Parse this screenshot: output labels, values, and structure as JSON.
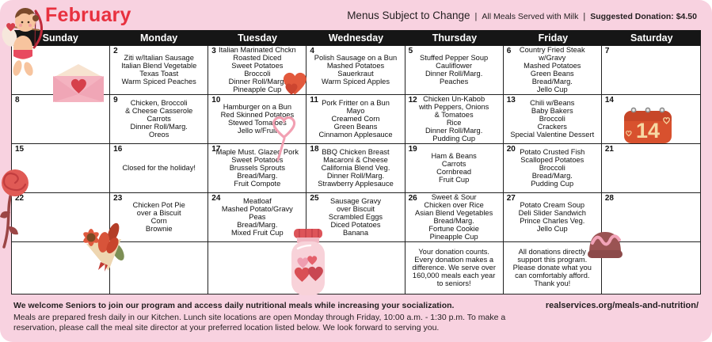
{
  "header": {
    "month": "February",
    "subtitle_main": "Menus Subject to Change",
    "divider": "|",
    "milk_note": "All Meals Served with Milk",
    "donation": "Suggested Donation: $4.50"
  },
  "weekdays": [
    "Sunday",
    "Monday",
    "Tuesday",
    "Wednesday",
    "Thursday",
    "Friday",
    "Saturday"
  ],
  "calendar": {
    "cells": [
      {
        "day": 1,
        "lines": []
      },
      {
        "day": 2,
        "lines": [
          "Ziti w/Italian Sausage",
          "Italian Blend Vegetable",
          "Texas Toast",
          "Warm Spiced Peaches"
        ]
      },
      {
        "day": 3,
        "lines": [
          "Italian Marinated Chckn",
          "Roasted Diced",
          "Sweet Potatoes",
          "Broccoli",
          "Dinner Roll/Marg.",
          "Pineapple Cup"
        ]
      },
      {
        "day": 4,
        "lines": [
          "Polish Sausage on a Bun",
          "Mashed Potatoes",
          "Sauerkraut",
          "Warm Spiced Apples"
        ]
      },
      {
        "day": 5,
        "lines": [
          "Stuffed Pepper Soup",
          "Cauliflower",
          "Dinner Roll/Marg.",
          "Peaches"
        ]
      },
      {
        "day": 6,
        "lines": [
          "Country Fried Steak",
          "w/Gravy",
          "Mashed Potatoes",
          "Green Beans",
          "Bread/Marg.",
          "Jello Cup"
        ]
      },
      {
        "day": 7,
        "lines": []
      },
      {
        "day": 8,
        "lines": []
      },
      {
        "day": 9,
        "lines": [
          "Chicken, Broccoli",
          "& Cheese Casserole",
          "Carrots",
          "Dinner Roll/Marg.",
          "Oreos"
        ]
      },
      {
        "day": 10,
        "lines": [
          "Hamburger on a Bun",
          "Red Skinned Potatoes",
          "Stewed Tomatoes",
          "Jello w/Fruit"
        ]
      },
      {
        "day": 11,
        "lines": [
          "Pork Fritter on a Bun",
          "Mayo",
          "Creamed Corn",
          "Green Beans",
          "Cinnamon Applesauce"
        ]
      },
      {
        "day": 12,
        "lines": [
          "Chicken Un-Kabob",
          "with Peppers, Onions",
          "& Tomatoes",
          "Rice",
          "Dinner Roll/Marg.",
          "Pudding Cup"
        ]
      },
      {
        "day": 13,
        "lines": [
          "Chili w/Beans",
          "Baby Bakers",
          "Broccoli",
          "Crackers",
          "Special Valentine Dessert"
        ]
      },
      {
        "day": 14,
        "lines": []
      },
      {
        "day": 15,
        "lines": []
      },
      {
        "day": 16,
        "lines": [
          "Closed for the holiday!"
        ]
      },
      {
        "day": 17,
        "lines": [
          "Maple Must. Glazed Pork",
          "Sweet Potatoes",
          "Brussels Sprouts",
          "Bread/Marg.",
          "Fruit Compote"
        ]
      },
      {
        "day": 18,
        "lines": [
          "BBQ Chicken Breast",
          "Macaroni & Cheese",
          "California Blend Veg.",
          "Dinner Roll/Marg.",
          "Strawberry Applesauce"
        ]
      },
      {
        "day": 19,
        "lines": [
          "Ham & Beans",
          "Carrots",
          "Cornbread",
          "Fruit Cup"
        ]
      },
      {
        "day": 20,
        "lines": [
          "Potato Crusted Fish",
          "Scalloped Potatoes",
          "Broccoli",
          "Bread/Marg.",
          "Pudding Cup"
        ]
      },
      {
        "day": 21,
        "lines": []
      },
      {
        "day": 22,
        "lines": []
      },
      {
        "day": 23,
        "lines": [
          "Chicken Pot Pie",
          "over a Biscuit",
          "Corn",
          "Brownie"
        ]
      },
      {
        "day": 24,
        "lines": [
          "Meatloaf",
          "Mashed Potato/Gravy",
          "Peas",
          "Bread/Marg.",
          "Mixed Fruit Cup"
        ]
      },
      {
        "day": 25,
        "lines": [
          "Sausage Gravy",
          "over Biscuit",
          "Scrambled Eggs",
          "Diced Potatoes",
          "Banana"
        ]
      },
      {
        "day": 26,
        "lines": [
          "Sweet & Sour",
          "Chicken over Rice",
          "Asian Blend Vegetables",
          "Bread/Marg.",
          "Fortune Cookie",
          "Pineapple Cup"
        ]
      },
      {
        "day": 27,
        "lines": [
          "Potato Cream Soup",
          "Deli Slider Sandwich",
          "Prince Charles Veg.",
          "Jello Cup"
        ]
      },
      {
        "day": 28,
        "lines": []
      }
    ],
    "bottom_row": [
      {
        "lines": []
      },
      {
        "lines": []
      },
      {
        "lines": []
      },
      {
        "lines": []
      },
      {
        "lines": [
          "Your donation counts.",
          "Every donation makes a",
          "difference. We serve over",
          "160,000 meals each year",
          "to seniors!"
        ]
      },
      {
        "lines": [
          "All donations directly",
          "support this program.",
          "Please donate what you",
          "can comfortably afford.",
          "Thank you!"
        ]
      },
      {
        "lines": []
      }
    ]
  },
  "footer": {
    "welcome": "We welcome Seniors to join our program and access daily nutritional meals while increasing your socialization.",
    "details_line1": "Meals are prepared fresh daily in our Kitchen. Lunch site locations are open Monday through Friday, 10:00 a.m. - 1:30 p.m. To make a",
    "details_line2": "reservation, please call the meal site director at your preferred location listed below. We look forward to serving you.",
    "url": "realservices.org/meals-and-nutrition/"
  },
  "decorations": {
    "calendar_day": "14",
    "icons": [
      "cupid-icon",
      "envelope-heart-icon",
      "double-heart-icon",
      "heart-lollipop-icon",
      "calendar-14-icon",
      "rose-icon",
      "flower-bouquet-icon",
      "jar-of-hearts-icon",
      "chocolate-icon"
    ]
  },
  "colors": {
    "card_pink": "#f8d2e0",
    "accent_red": "#e8313f",
    "header_black": "#161616",
    "cell_white": "#ffffff",
    "text_dark": "#231f20",
    "deco_orange_red": "#e2593c"
  }
}
